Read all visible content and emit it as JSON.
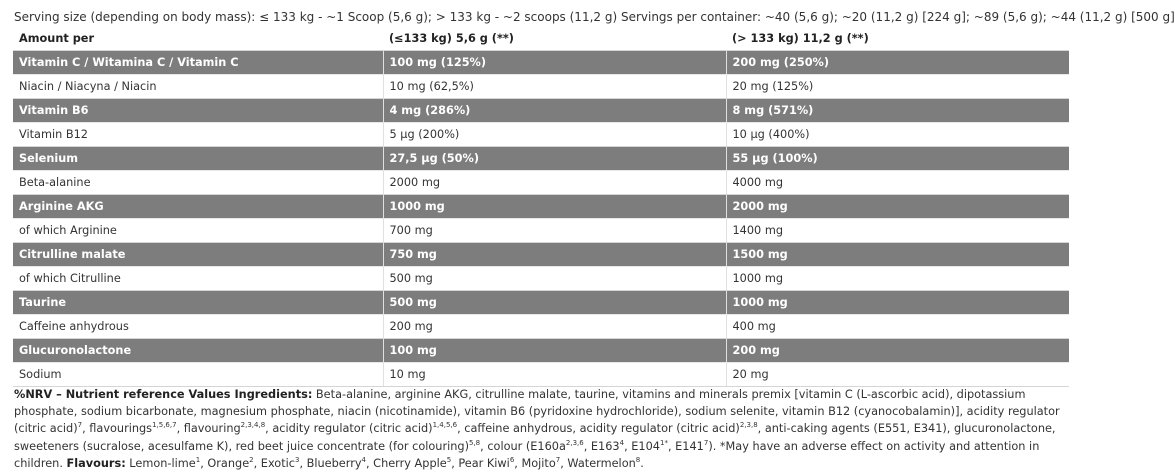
{
  "serving_line": "Serving size (depending on body mass): ≤ 133 kg - ~1 Scoop (5,6 g); > 133 kg - ~2 scoops (11,2 g) Servings per container: ~40 (5,6 g); ~20 (11,2 g) [224 g]; ~89 (5,6 g); ~44 (11,2 g) [500 g]",
  "table": {
    "headers": [
      "Amount per",
      "(≤133 kg) 5,6 g (**)",
      "(> 133 kg) 11,2 g (**)"
    ],
    "rows": [
      {
        "name": "Vitamin C / Witamina C / Vitamin C",
        "a": "100 mg (125%)",
        "b": "200 mg (250%)",
        "dark": true
      },
      {
        "name": "Niacin / Niacyna / Niacin",
        "a": "10 mg (62,5%)",
        "b": "20 mg (125%)",
        "dark": false
      },
      {
        "name": "Vitamin B6",
        "a": "4 mg (286%)",
        "b": "8 mg (571%)",
        "dark": true
      },
      {
        "name": "Vitamin B12",
        "a": "5 µg (200%)",
        "b": "10 µg (400%)",
        "dark": false
      },
      {
        "name": "Selenium",
        "a": "27,5 µg (50%)",
        "b": "55 µg (100%)",
        "dark": true
      },
      {
        "name": "Beta-alanine",
        "a": "2000 mg",
        "b": "4000 mg",
        "dark": false
      },
      {
        "name": "Arginine AKG",
        "a": "1000 mg",
        "b": "2000 mg",
        "dark": true
      },
      {
        "name": " of which Arginine",
        "a": "700 mg",
        "b": "1400 mg",
        "dark": false
      },
      {
        "name": "Citrulline malate",
        "a": "750 mg",
        "b": "1500 mg",
        "dark": true
      },
      {
        "name": " of which Citrulline",
        "a": "500 mg",
        "b": "1000 mg",
        "dark": false
      },
      {
        "name": "Taurine",
        "a": "500 mg",
        "b": "1000 mg",
        "dark": true
      },
      {
        "name": "Caffeine anhydrous",
        "a": "200 mg",
        "b": "400 mg",
        "dark": false
      },
      {
        "name": "Glucuronolactone",
        "a": "100 mg",
        "b": "200 mg",
        "dark": true
      },
      {
        "name": "Sodium",
        "a": "10 mg",
        "b": "20 mg",
        "dark": false
      }
    ]
  },
  "ingredients": {
    "heading": "%NRV – Nutrient reference Values Ingredients:",
    "text_1": " Beta-alanine, arginine AKG, citrulline malate, taurine, vitamins and minerals premix [vitamin C (L-ascorbic acid), dipotassium phosphate, sodium bicarbonate, magnesium phosphate, niacin (nicotinamide), vitamin B6 (pyridoxine hydrochloride), sodium selenite, vitamin B12 (cyanocobalamin)], acidity regulator (citric acid)",
    "sup_1": "7",
    "text_2": ", flavourings",
    "sup_2": "1,5,6,7",
    "text_3": ", flavouring",
    "sup_3": "2,3,4,8",
    "text_4": ", acidity regulator (citric acid)",
    "sup_4": "1,4,5,6",
    "text_5": ", caffeine anhydrous, acidity regulator (citric acid)",
    "sup_5": "2,3,8",
    "text_6": ", anti-caking agents (E551, E341), glucuronolactone, sweeteners (sucralose, acesulfame K), red beet juice concentrate (for colouring)",
    "sup_6": "5,8",
    "text_7": ", colour (E160a",
    "sup_7": "2,3,6",
    "text_8": ", E163",
    "sup_8": "4",
    "text_9": ", E104",
    "sup_9": "1*",
    "text_10": ", E141",
    "sup_10": "7",
    "text_11": "). *May have an adverse effect on activity and attention in children. ",
    "flavours_label": "Flavours:",
    "flavours": [
      {
        "name": " Lemon-lime",
        "sup": "1"
      },
      {
        "name": ", Orange",
        "sup": "2"
      },
      {
        "name": ", Exotic",
        "sup": "3"
      },
      {
        "name": ", Blueberry",
        "sup": "4"
      },
      {
        "name": ", Cherry Apple",
        "sup": "5"
      },
      {
        "name": ", Pear Kiwi",
        "sup": "6"
      },
      {
        "name": ", Mojito",
        "sup": "7"
      },
      {
        "name": ", Watermelon",
        "sup": "8"
      }
    ],
    "end": "."
  }
}
